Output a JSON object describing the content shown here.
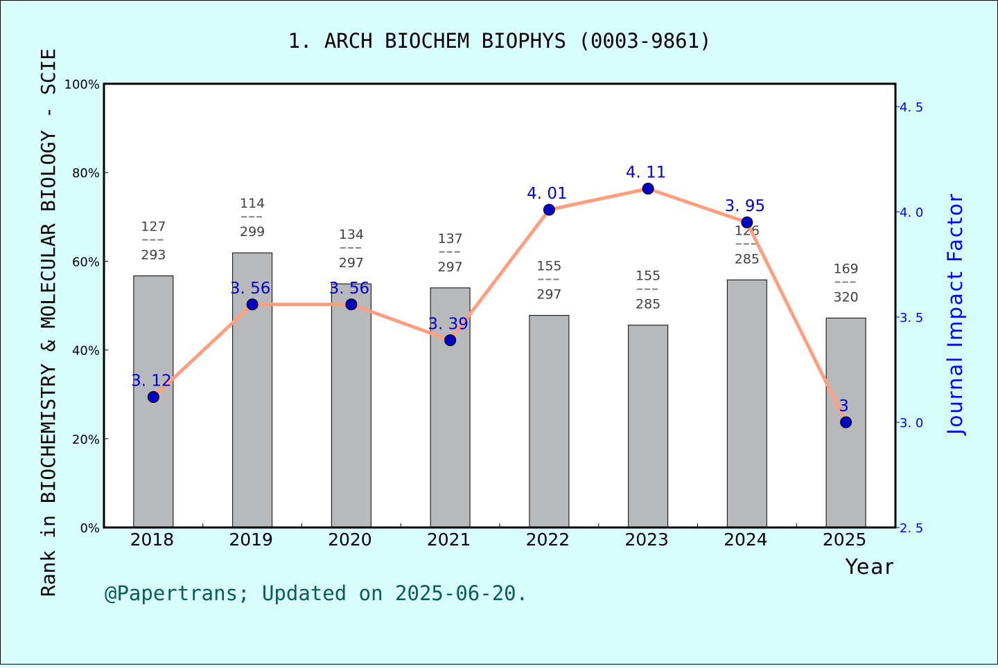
{
  "title": "1. ARCH BIOCHEM BIOPHYS (0003-9861)",
  "left_axis_label": "Rank in BIOCHEMISTRY & MOLECULAR BIOLOGY - SCIE",
  "right_axis_label": "Journal Impact Factor",
  "x_axis_label": "Year",
  "footer": "@Papertrans; Updated on 2025-06-20.",
  "colors": {
    "background": "#d7fdfd",
    "plot_bg": "#ffffff",
    "bar_fill": "#b8b9bb",
    "line": "#ff9f7f",
    "marker": "#0000c0",
    "if_label": "#0000d0",
    "rank_label": "#404040",
    "footer": "#0b5c52",
    "right_axis": "#0000ff"
  },
  "chart_data": {
    "type": "bar+line",
    "title": "1. ARCH BIOCHEM BIOPHYS (0003-9861)",
    "xlabel": "Year",
    "ylabel": "Rank in BIOCHEMISTRY & MOLECULAR BIOLOGY - SCIE",
    "y2label": "Journal Impact Factor",
    "categories": [
      "2018",
      "2019",
      "2020",
      "2021",
      "2022",
      "2023",
      "2024",
      "2025"
    ],
    "ylim": [
      0,
      100
    ],
    "y_ticks": [
      "0%",
      "20%",
      "40%",
      "60%",
      "80%",
      "100%"
    ],
    "y2lim": [
      2.5,
      4.6
    ],
    "y2_ticks": [
      "2.5",
      "3.0",
      "3.5",
      "4.0",
      "4.5"
    ],
    "series": [
      {
        "name": "Rank percentile (bar)",
        "type": "bar",
        "values": [
          56.7,
          61.9,
          54.9,
          54.0,
          47.8,
          45.6,
          55.8,
          47.2
        ],
        "ranks": [
          127,
          114,
          134,
          137,
          155,
          155,
          126,
          169
        ],
        "totals": [
          293,
          299,
          297,
          297,
          297,
          285,
          285,
          320
        ]
      },
      {
        "name": "Journal Impact Factor (line)",
        "type": "line",
        "values": [
          3.12,
          3.56,
          3.56,
          3.39,
          4.01,
          4.11,
          3.95,
          3.0
        ],
        "labels": [
          "3.12",
          "3.56",
          "3.56",
          "3.39",
          "4.01",
          "4.11",
          "3.95",
          "3"
        ]
      }
    ],
    "grid": false,
    "legend": "none"
  }
}
